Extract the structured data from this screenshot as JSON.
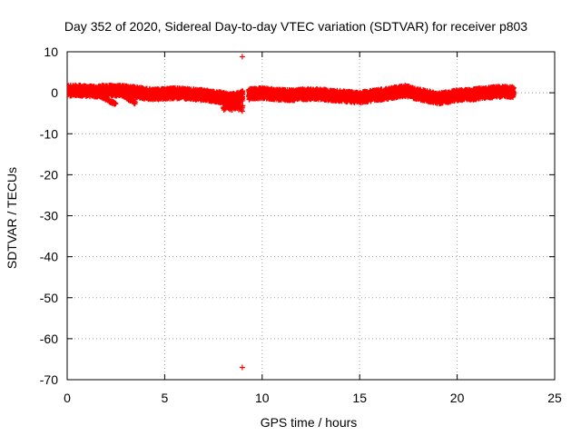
{
  "chart_data": {
    "type": "scatter",
    "title": "Day 352 of 2020, Sidereal Day-to-day VTEC variation (SDTVAR) for receiver p803",
    "xlabel": "GPS time / hours",
    "ylabel": "SDTVAR / TECUs",
    "xlim": [
      0,
      25
    ],
    "ylim": [
      -70,
      10
    ],
    "x_ticks": [
      0,
      5,
      10,
      15,
      20,
      25
    ],
    "x_tick_labels": [
      "0",
      "5",
      "10",
      "15",
      "20",
      "25"
    ],
    "y_ticks": [
      10,
      0,
      -10,
      -20,
      -30,
      -40,
      -50,
      -60,
      -70
    ],
    "y_tick_labels": [
      "10",
      "0",
      "-10",
      "-20",
      "-30",
      "-40",
      "-50",
      "-60",
      "-70"
    ],
    "grid": true,
    "marker": "+",
    "color": "#ff0000",
    "trend": [
      [
        0.0,
        0.5
      ],
      [
        0.5,
        0.6
      ],
      [
        1.0,
        0.4
      ],
      [
        1.5,
        0.3
      ],
      [
        2.0,
        0.6
      ],
      [
        2.5,
        0.5
      ],
      [
        3.0,
        0.4
      ],
      [
        3.5,
        0.2
      ],
      [
        4.0,
        -0.2
      ],
      [
        4.5,
        -0.4
      ],
      [
        5.0,
        -0.3
      ],
      [
        5.5,
        -0.1
      ],
      [
        6.0,
        -0.2
      ],
      [
        6.5,
        -0.4
      ],
      [
        7.0,
        -0.6
      ],
      [
        7.5,
        -0.9
      ],
      [
        8.0,
        -1.2
      ],
      [
        8.3,
        -1.6
      ],
      [
        8.6,
        -1.4
      ],
      [
        9.0,
        -0.8
      ],
      [
        9.5,
        -0.2
      ],
      [
        10.0,
        -0.1
      ],
      [
        10.5,
        -0.3
      ],
      [
        11.0,
        -0.5
      ],
      [
        11.5,
        -0.6
      ],
      [
        12.0,
        -0.4
      ],
      [
        12.5,
        -0.3
      ],
      [
        13.0,
        -0.4
      ],
      [
        13.5,
        -0.6
      ],
      [
        14.0,
        -0.8
      ],
      [
        14.5,
        -1.0
      ],
      [
        15.0,
        -1.2
      ],
      [
        15.5,
        -0.8
      ],
      [
        16.0,
        -0.5
      ],
      [
        16.5,
        -0.2
      ],
      [
        17.0,
        0.2
      ],
      [
        17.3,
        0.5
      ],
      [
        17.6,
        0.2
      ],
      [
        18.0,
        -0.4
      ],
      [
        18.5,
        -0.8
      ],
      [
        19.0,
        -1.4
      ],
      [
        19.5,
        -1.1
      ],
      [
        20.0,
        -0.6
      ],
      [
        20.5,
        -0.5
      ],
      [
        21.0,
        -0.3
      ],
      [
        21.5,
        0.0
      ],
      [
        22.0,
        0.2
      ],
      [
        22.5,
        0.3
      ],
      [
        22.9,
        0.2
      ]
    ],
    "spread": [
      1.3,
      1.3
    ],
    "gap_start": 9.0,
    "gap_end": 9.3,
    "low_cluster": {
      "x": [
        8.0,
        9.0
      ],
      "y": [
        -4.2,
        -2.5
      ]
    },
    "downward_tails": [
      {
        "x": [
          1.6,
          2.5
        ],
        "y_from": -0.5,
        "y_to": -2.8
      },
      {
        "x": [
          2.5,
          3.5
        ],
        "y_from": 0.5,
        "y_to": -2.5
      }
    ],
    "outliers": [
      {
        "x": 8.98,
        "y": 8.8
      },
      {
        "x": 8.98,
        "y": -4.5
      },
      {
        "x": 8.98,
        "y": -67.0
      }
    ]
  }
}
